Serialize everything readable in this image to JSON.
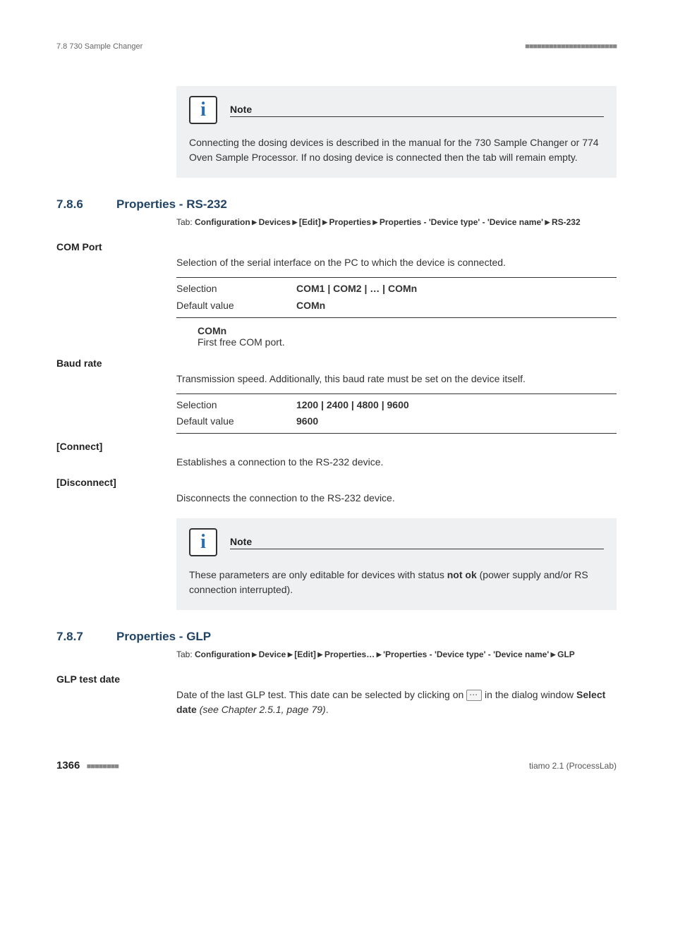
{
  "header": {
    "left": "7.8 730 Sample Changer",
    "right_dots": "■■■■■■■■■■■■■■■■■■■■■■■"
  },
  "note1": {
    "title": "Note",
    "body": "Connecting the dosing devices is described in the manual for the 730 Sample Changer or 774 Oven Sample Processor. If no dosing device is connected then the tab will remain empty."
  },
  "sec786": {
    "number": "7.8.6",
    "title": "Properties - RS-232",
    "tab_prefix": "Tab: ",
    "tab_path": "Configuration ▸ Devices ▸ [Edit] ▸ Properties ▸ Properties - 'Device type' - 'Device name' ▸ RS-232"
  },
  "com_port": {
    "label": "COM Port",
    "desc": "Selection of the serial interface on the PC to which the device is connected.",
    "selection_label": "Selection",
    "selection_value": "COM1 | COM2 | … | COMn",
    "default_label": "Default value",
    "default_value": "COMn",
    "sub_title": "COMn",
    "sub_desc": "First free COM port."
  },
  "baud_rate": {
    "label": "Baud rate",
    "desc": "Transmission speed. Additionally, this baud rate must be set on the device itself.",
    "selection_label": "Selection",
    "selection_value": "1200 | 2400 | 4800 | 9600",
    "default_label": "Default value",
    "default_value": "9600"
  },
  "connect": {
    "label": "[Connect]",
    "desc": "Establishes a connection to the RS-232 device."
  },
  "disconnect": {
    "label": "[Disconnect]",
    "desc": "Disconnects the connection to the RS-232 device."
  },
  "note2": {
    "title": "Note",
    "body_pre": "These parameters are only editable for devices with status ",
    "body_bold": "not ok",
    "body_post": " (power supply and/or RS connection interrupted)."
  },
  "sec787": {
    "number": "7.8.7",
    "title": "Properties - GLP",
    "tab_prefix": "Tab: ",
    "tab_path": "Configuration ▸ Device ▸ [Edit] ▸ Properties… ▸ 'Properties - 'Device type' - 'Device name' ▸ GLP"
  },
  "glp": {
    "label": "GLP test date",
    "desc_pre": "Date of the last GLP test. This date can be selected by clicking on ",
    "desc_post": " in the dialog window ",
    "bold": "Select date",
    "italic": " (see Chapter 2.5.1, page 79)",
    "period": "."
  },
  "footer": {
    "page": "1366",
    "dots": "■■■■■■■■",
    "right": "tiamo 2.1 (ProcessLab)"
  }
}
